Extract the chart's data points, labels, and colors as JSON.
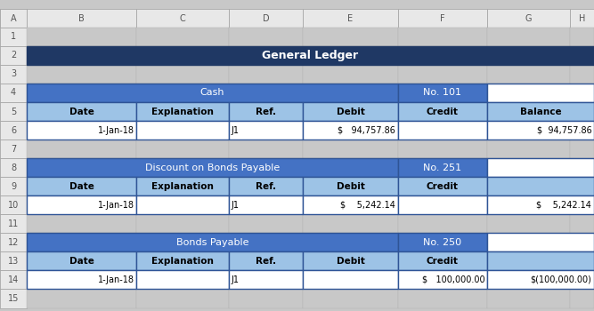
{
  "title": "General Ledger",
  "title_bg": "#1F3864",
  "title_color": "#FFFFFF",
  "medium_blue": "#4472C4",
  "light_blue": "#9DC3E6",
  "border_color": "#2F5496",
  "sections": [
    {
      "name": "Cash",
      "number": "No. 101",
      "headers": [
        "Date",
        "Explanation",
        "Ref.",
        "Debit",
        "Credit",
        "Balance"
      ],
      "rows": [
        [
          "1-Jan-18",
          "",
          "J1",
          "$   94,757.86",
          "",
          "$  94,757.86"
        ]
      ]
    },
    {
      "name": "Discount on Bonds Payable",
      "number": "No. 251",
      "headers": [
        "Date",
        "Explanation",
        "Ref.",
        "Debit",
        "Credit",
        ""
      ],
      "rows": [
        [
          "1-Jan-18",
          "",
          "J1",
          "$    5,242.14",
          "",
          "$    5,242.14"
        ]
      ]
    },
    {
      "name": "Bonds Payable",
      "number": "No. 250",
      "headers": [
        "Date",
        "Explanation",
        "Ref.",
        "Debit",
        "Credit",
        ""
      ],
      "rows": [
        [
          "1-Jan-18",
          "",
          "J1",
          "",
          "$   100,000.00",
          "$(100,000.00)"
        ]
      ]
    }
  ],
  "col_aligns": [
    "right",
    "left",
    "left",
    "right",
    "right",
    "right"
  ],
  "figsize": [
    6.67,
    3.5
  ],
  "dpi": 100,
  "bg_color": "#C8C8C8",
  "col_letters": [
    "A",
    "B",
    "C",
    "D",
    "E",
    "F",
    "G",
    "H"
  ],
  "num_rows": 15
}
